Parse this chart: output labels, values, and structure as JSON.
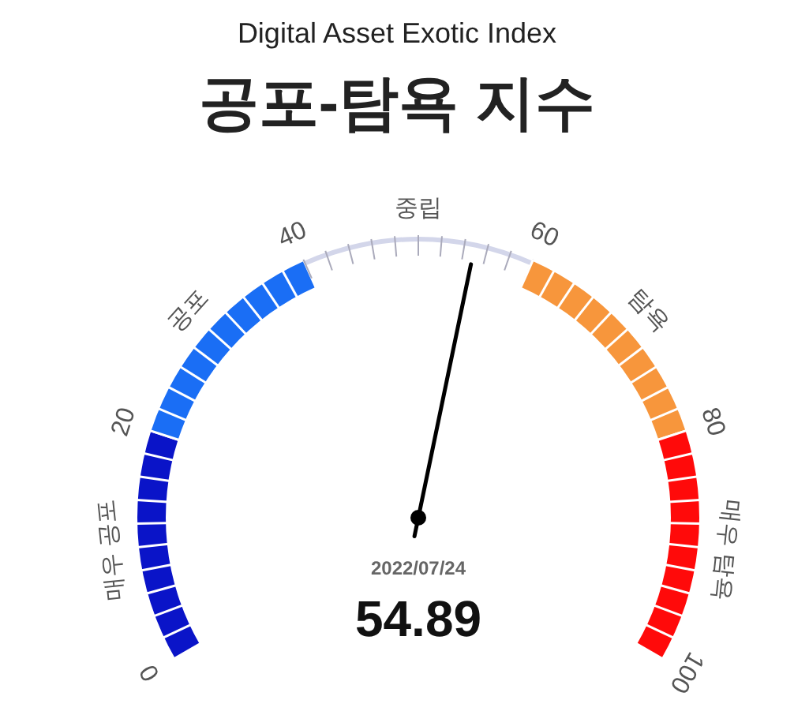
{
  "chart_data": {
    "type": "other",
    "title": "공포-탐욕 지수",
    "subtitle": "Digital Asset Exotic Index",
    "values": [
      54.89
    ],
    "data_labels": true,
    "annotations": [
      "0",
      "20",
      "40",
      "60",
      "80",
      "100",
      "매우 공포",
      "공포",
      "중립",
      "탐욕",
      "매우 탐욕",
      "2022/07/24"
    ]
  }
}
